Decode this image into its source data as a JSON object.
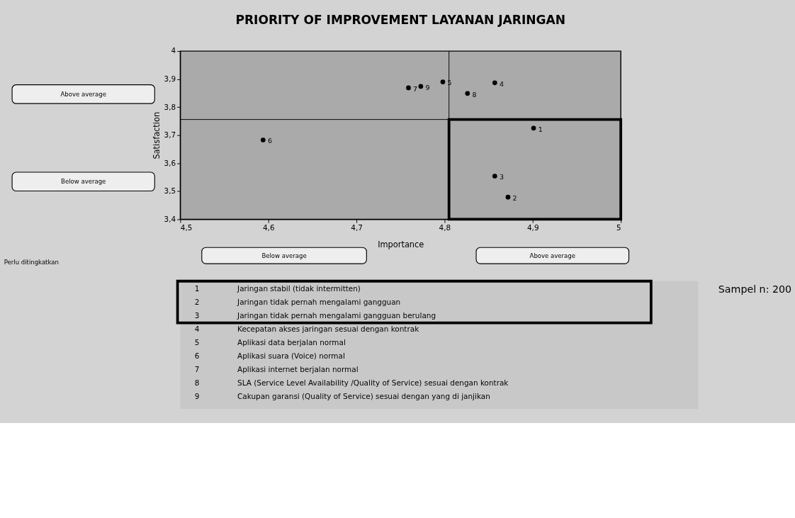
{
  "chart_data": {
    "type": "scatter",
    "title": "PRIORITY OF IMPROVEMENT LAYANAN JARINGAN",
    "xlabel": "Importance",
    "ylabel": "Satisfaction",
    "x": [
      4.901,
      4.872,
      4.857,
      4.857,
      4.798,
      4.594,
      4.759,
      4.826,
      4.773
    ],
    "series": [
      {
        "color": "#000000",
        "values": [
          3.725,
          3.479,
          3.554,
          3.887,
          3.89,
          3.683,
          3.869,
          3.849,
          3.874
        ]
      }
    ],
    "xlim": [
      4.5,
      5
    ],
    "ylim": [
      3.4,
      4
    ],
    "xticks": [
      {
        "value": 4.5,
        "label": "4,5"
      },
      {
        "value": 4.6,
        "label": "4,6"
      },
      {
        "value": 4.7,
        "label": "4,7"
      },
      {
        "value": 4.8,
        "label": "4,8"
      },
      {
        "value": 4.9,
        "label": "4,9"
      },
      5
    ],
    "yticks": [
      {
        "value": 3.4,
        "label": "3,4"
      },
      {
        "value": 3.5,
        "label": "3,5"
      },
      {
        "value": 3.6,
        "label": "3,6"
      },
      {
        "value": 3.7,
        "label": "3,7"
      },
      {
        "value": 3.8,
        "label": "3,8"
      },
      {
        "value": 3.9,
        "label": "3,9"
      },
      4
    ],
    "ref_lines": [
      {
        "axis": "x",
        "value": 4.805,
        "color": "#000000"
      },
      {
        "axis": "y",
        "value": 3.756,
        "color": "#000000"
      }
    ],
    "marker": "circle",
    "grid": false,
    "annotations": [
      "Above average",
      "Below average",
      "Below average",
      "Above average",
      "Perlu ditingkatkan",
      "1 Jaringan stabil (tidak intermitten)",
      "2 Jaringan tidak pernah mengalami gangguan",
      "3 Jaringan tidak pernah mengalami gangguan berulang",
      "4 Kecepatan akses jaringan sesuai dengan kontrak",
      "5 Aplikasi data berjalan normal",
      "6 Aplikasi suara (Voice) normal",
      "7 Aplikasi internet berjalan normal",
      "8 SLA (Service Level Availability /Quality of Service) sesuai dengan kontrak",
      "9 Cakupan garansi (Quality of Service) sesuai dengan yang di janjikan",
      "Sampel n: 200",
      {
        "text": "1",
        "x": 4.901,
        "y": 3.725
      },
      {
        "text": "2",
        "x": 4.872,
        "y": 3.479
      },
      {
        "text": "3",
        "x": 4.857,
        "y": 3.554
      },
      {
        "text": "4",
        "x": 4.857,
        "y": 3.887
      },
      {
        "text": "5",
        "x": 4.798,
        "y": 3.89
      },
      {
        "text": "6",
        "x": 4.594,
        "y": 3.683
      },
      {
        "text": "7",
        "x": 4.759,
        "y": 3.869
      },
      {
        "text": "8",
        "x": 4.826,
        "y": 3.849
      },
      {
        "text": "9",
        "x": 4.773,
        "y": 3.874
      }
    ]
  }
}
